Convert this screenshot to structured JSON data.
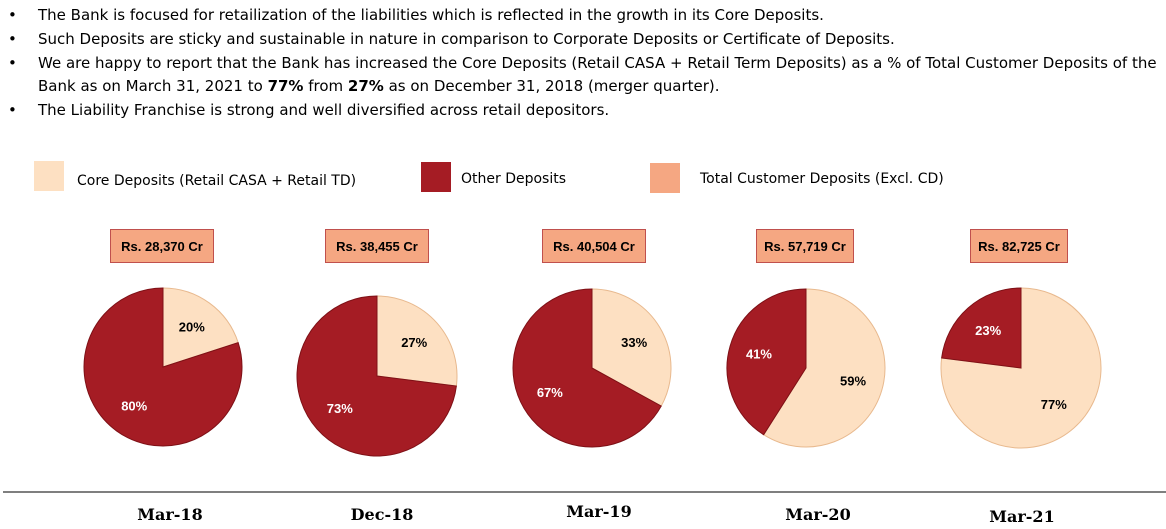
{
  "bullets": [
    {
      "pre": "The Bank is focused for retailization of the liabilities which is reflected in the growth in its Core Deposits.",
      "b1": "",
      "mid": "",
      "b2": "",
      "post": ""
    },
    {
      "pre": "Such Deposits are sticky and sustainable in nature in comparison to Corporate Deposits or Certificate of Deposits.",
      "b1": "",
      "mid": "",
      "b2": "",
      "post": ""
    },
    {
      "pre": "We are happy to report that the Bank has increased the Core Deposits (Retail CASA + Retail Term Deposits) as a % of Total Customer Deposits of the Bank as on March 31, 2021 to ",
      "b1": "77%",
      "mid": " from ",
      "b2": "27%",
      "post": " as on December 31, 2018 (merger quarter)."
    },
    {
      "pre": "The Liability Franchise is strong and well diversified across retail depositors.",
      "b1": "",
      "mid": "",
      "b2": "",
      "post": ""
    }
  ],
  "bullet_symbol": "•",
  "legend": [
    {
      "label": "Core Deposits (Retail CASA + Retail TD)",
      "color": "#fde0c2"
    },
    {
      "label": "Other Deposits",
      "color": "#a51c24"
    },
    {
      "label": "Total Customer Deposits (Excl. CD)",
      "color": "#f5a782"
    }
  ],
  "colors": {
    "core": "#fde0c2",
    "other": "#a51c24",
    "total": "#f5a782",
    "baseline": "#7f7f7f"
  },
  "chart_data": [
    {
      "type": "pie",
      "period": "Mar-18",
      "total": "Rs. 28,370 Cr",
      "slices": [
        {
          "name": "Core Deposits (Retail CASA + Retail TD)",
          "value": 20,
          "label": "20%"
        },
        {
          "name": "Other Deposits",
          "value": 80,
          "label": "80%"
        }
      ]
    },
    {
      "type": "pie",
      "period": "Dec-18",
      "total": "Rs. 38,455 Cr",
      "slices": [
        {
          "name": "Core Deposits (Retail CASA + Retail TD)",
          "value": 27,
          "label": "27%"
        },
        {
          "name": "Other Deposits",
          "value": 73,
          "label": "73%"
        }
      ]
    },
    {
      "type": "pie",
      "period": "Mar-19",
      "total": "Rs. 40,504 Cr",
      "slices": [
        {
          "name": "Core Deposits (Retail CASA + Retail TD)",
          "value": 33,
          "label": "33%"
        },
        {
          "name": "Other Deposits",
          "value": 67,
          "label": "67%"
        }
      ]
    },
    {
      "type": "pie",
      "period": "Mar-20",
      "total": "Rs. 57,719 Cr",
      "slices": [
        {
          "name": "Core Deposits (Retail CASA + Retail TD)",
          "value": 59,
          "label": "59%"
        },
        {
          "name": "Other Deposits",
          "value": 41,
          "label": "41%"
        }
      ]
    },
    {
      "type": "pie",
      "period": "Mar-21",
      "total": "Rs. 82,725 Cr",
      "slices": [
        {
          "name": "Core Deposits (Retail CASA + Retail TD)",
          "value": 77,
          "label": "77%"
        },
        {
          "name": "Other Deposits",
          "value": 23,
          "label": "23%"
        }
      ]
    }
  ]
}
